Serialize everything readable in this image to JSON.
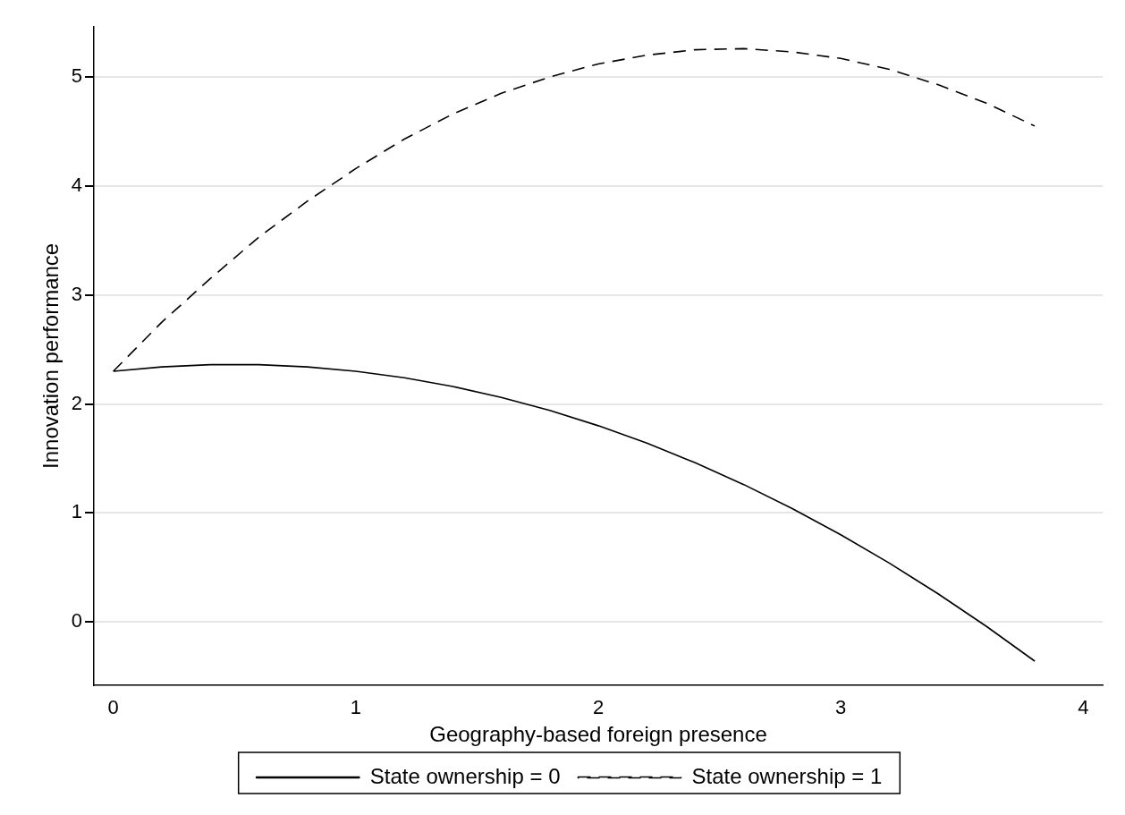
{
  "chart_data": {
    "type": "line",
    "xlabel": "Geography-based foreign presence",
    "ylabel": "Innovation performance",
    "x": [
      0,
      0.2,
      0.4,
      0.6,
      0.8,
      1.0,
      1.2,
      1.4,
      1.6,
      1.8,
      2.0,
      2.2,
      2.4,
      2.6,
      2.8,
      3.0,
      3.2,
      3.4,
      3.6,
      3.8
    ],
    "series": [
      {
        "name": "State ownership = 0",
        "color": "#000000",
        "line_style": "solid",
        "values": [
          2.3,
          2.34,
          2.36,
          2.36,
          2.34,
          2.3,
          2.24,
          2.16,
          2.06,
          1.94,
          1.8,
          1.64,
          1.46,
          1.26,
          1.04,
          0.8,
          0.54,
          0.26,
          -0.04,
          -0.36
        ]
      },
      {
        "name": "State ownership = 1",
        "color": "#000000",
        "line_style": "dashed",
        "values": [
          2.3,
          2.75,
          3.15,
          3.53,
          3.86,
          4.16,
          4.43,
          4.66,
          4.85,
          5.0,
          5.12,
          5.2,
          5.25,
          5.26,
          5.23,
          5.17,
          5.07,
          4.93,
          4.76,
          4.55
        ]
      }
    ],
    "xlim": [
      -0.08,
      4.08
    ],
    "ylim": [
      -0.58,
      5.46
    ],
    "xticks": [
      0,
      1,
      2,
      3,
      4
    ],
    "yticks": [
      0,
      1,
      2,
      3,
      4,
      5
    ],
    "grid": "y",
    "legend": "bottom",
    "marker": "none"
  }
}
